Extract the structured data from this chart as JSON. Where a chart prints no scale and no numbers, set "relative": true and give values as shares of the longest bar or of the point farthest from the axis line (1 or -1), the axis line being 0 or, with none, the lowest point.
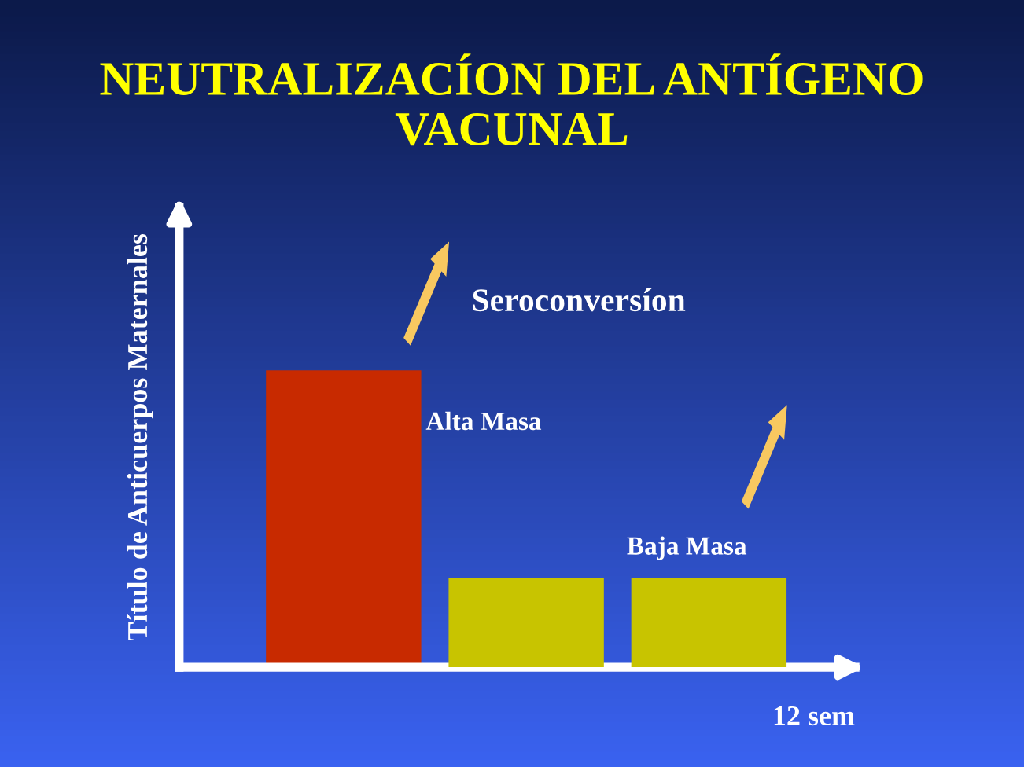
{
  "chart_data": {
    "type": "bar",
    "title": "NEUTRALIZACÍON DEL ANTÍGENO\nVACUNAL",
    "xlabel": "12 sem",
    "ylabel": "Título de Anticuerpos Maternales",
    "categories": [
      null,
      null,
      null
    ],
    "relative": true,
    "values": [
      1,
      0.3,
      0.3
    ],
    "colors": [
      "#c82a00",
      "#c8c400",
      "#c8c400"
    ],
    "annotations": [
      "Seroconversíon",
      "Alta Masa",
      "Baja Masa"
    ]
  }
}
